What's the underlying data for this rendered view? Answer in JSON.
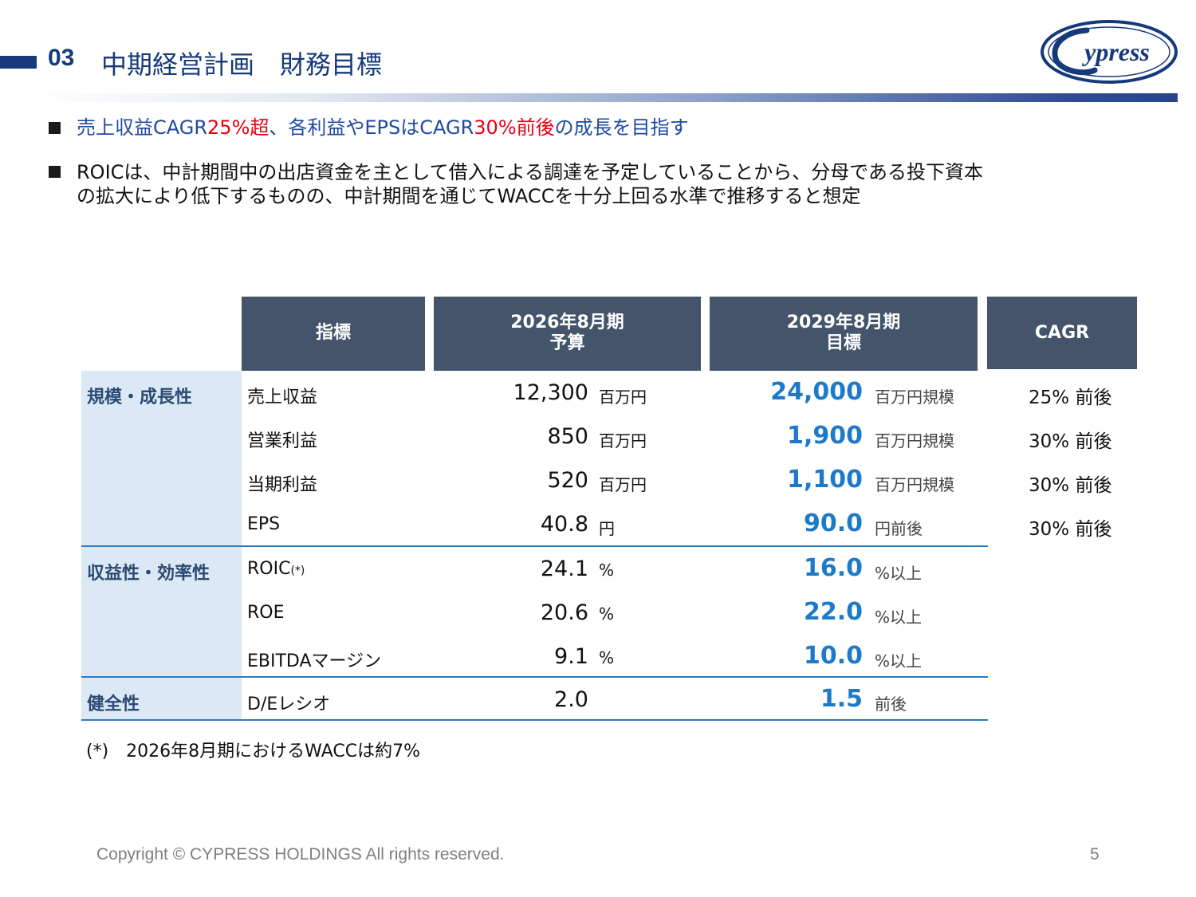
{
  "header": {
    "section_number": "03",
    "title": "中期経営計画　財務目標",
    "logo_text": "Cypress"
  },
  "bullets": [
    {
      "parts": [
        {
          "text": "売上収益CAGR",
          "color": "#1f4aa0"
        },
        {
          "text": "25%超",
          "color": "#e60012"
        },
        {
          "text": "、各利益やEPSはCAGR",
          "color": "#1f4aa0"
        },
        {
          "text": "30%前後",
          "color": "#e60012"
        },
        {
          "text": "の成長を目指す",
          "color": "#1f4aa0"
        }
      ]
    },
    {
      "line1": "ROICは、中計期間中の出店資金を主として借入による調達を予定していることから、分母である投下資本",
      "line2": "の拡大により低下するものの、中計期間を通じてWACCを十分上回る水準で推移すると想定"
    }
  ],
  "table": {
    "headers": {
      "indicator": "指標",
      "fy2026_line1": "2026年8月期",
      "fy2026_line2": "予算",
      "fy2029_line1": "2029年8月期",
      "fy2029_line2": "目標",
      "cagr": "CAGR"
    },
    "categories": {
      "scale": "規模・成長性",
      "efficiency": "収益性・効率性",
      "soundness": "健全性"
    },
    "rows": [
      {
        "label": "売上収益",
        "fy2026_value": "12,300",
        "fy2026_unit": "百万円",
        "fy2029_value": "24,000",
        "fy2029_unit": "百万円規模",
        "cagr_value": "25%",
        "cagr_suffix": "前後"
      },
      {
        "label": "営業利益",
        "fy2026_value": "850",
        "fy2026_unit": "百万円",
        "fy2029_value": "1,900",
        "fy2029_unit": "百万円規模",
        "cagr_value": "30%",
        "cagr_suffix": "前後"
      },
      {
        "label": "当期利益",
        "fy2026_value": "520",
        "fy2026_unit": "百万円",
        "fy2029_value": "1,100",
        "fy2029_unit": "百万円規模",
        "cagr_value": "30%",
        "cagr_suffix": "前後"
      },
      {
        "label": "EPS",
        "fy2026_value": "40.8",
        "fy2026_unit": "円",
        "fy2029_value": "90.0",
        "fy2029_unit": "円前後",
        "cagr_value": "30%",
        "cagr_suffix": "前後"
      },
      {
        "label": "ROIC",
        "label_sup": "(*)",
        "fy2026_value": "24.1",
        "fy2026_unit": "%",
        "fy2029_value": "16.0",
        "fy2029_unit": "%以上"
      },
      {
        "label": "ROE",
        "fy2026_value": "20.6",
        "fy2026_unit": "%",
        "fy2029_value": "22.0",
        "fy2029_unit": "%以上"
      },
      {
        "label": "EBITDAマージン",
        "fy2026_value": "9.1",
        "fy2026_unit": "%",
        "fy2029_value": "10.0",
        "fy2029_unit": "%以上"
      },
      {
        "label": "D/Eレシオ",
        "fy2026_value": "2.0",
        "fy2026_unit": "",
        "fy2029_value": "1.5",
        "fy2029_unit": "前後"
      }
    ]
  },
  "footnote": "(*)　2026年8月期におけるWACCは約7%",
  "footer": {
    "copyright": "Copyright © CYPRESS HOLDINGS All rights reserved.",
    "page_number": "5"
  },
  "colors": {
    "brand_navy": "#15397a",
    "header_cell": "#44546a",
    "category_bg": "#dbe8f5",
    "target_value": "#1d7ac9",
    "highlight_red": "#e60012"
  }
}
